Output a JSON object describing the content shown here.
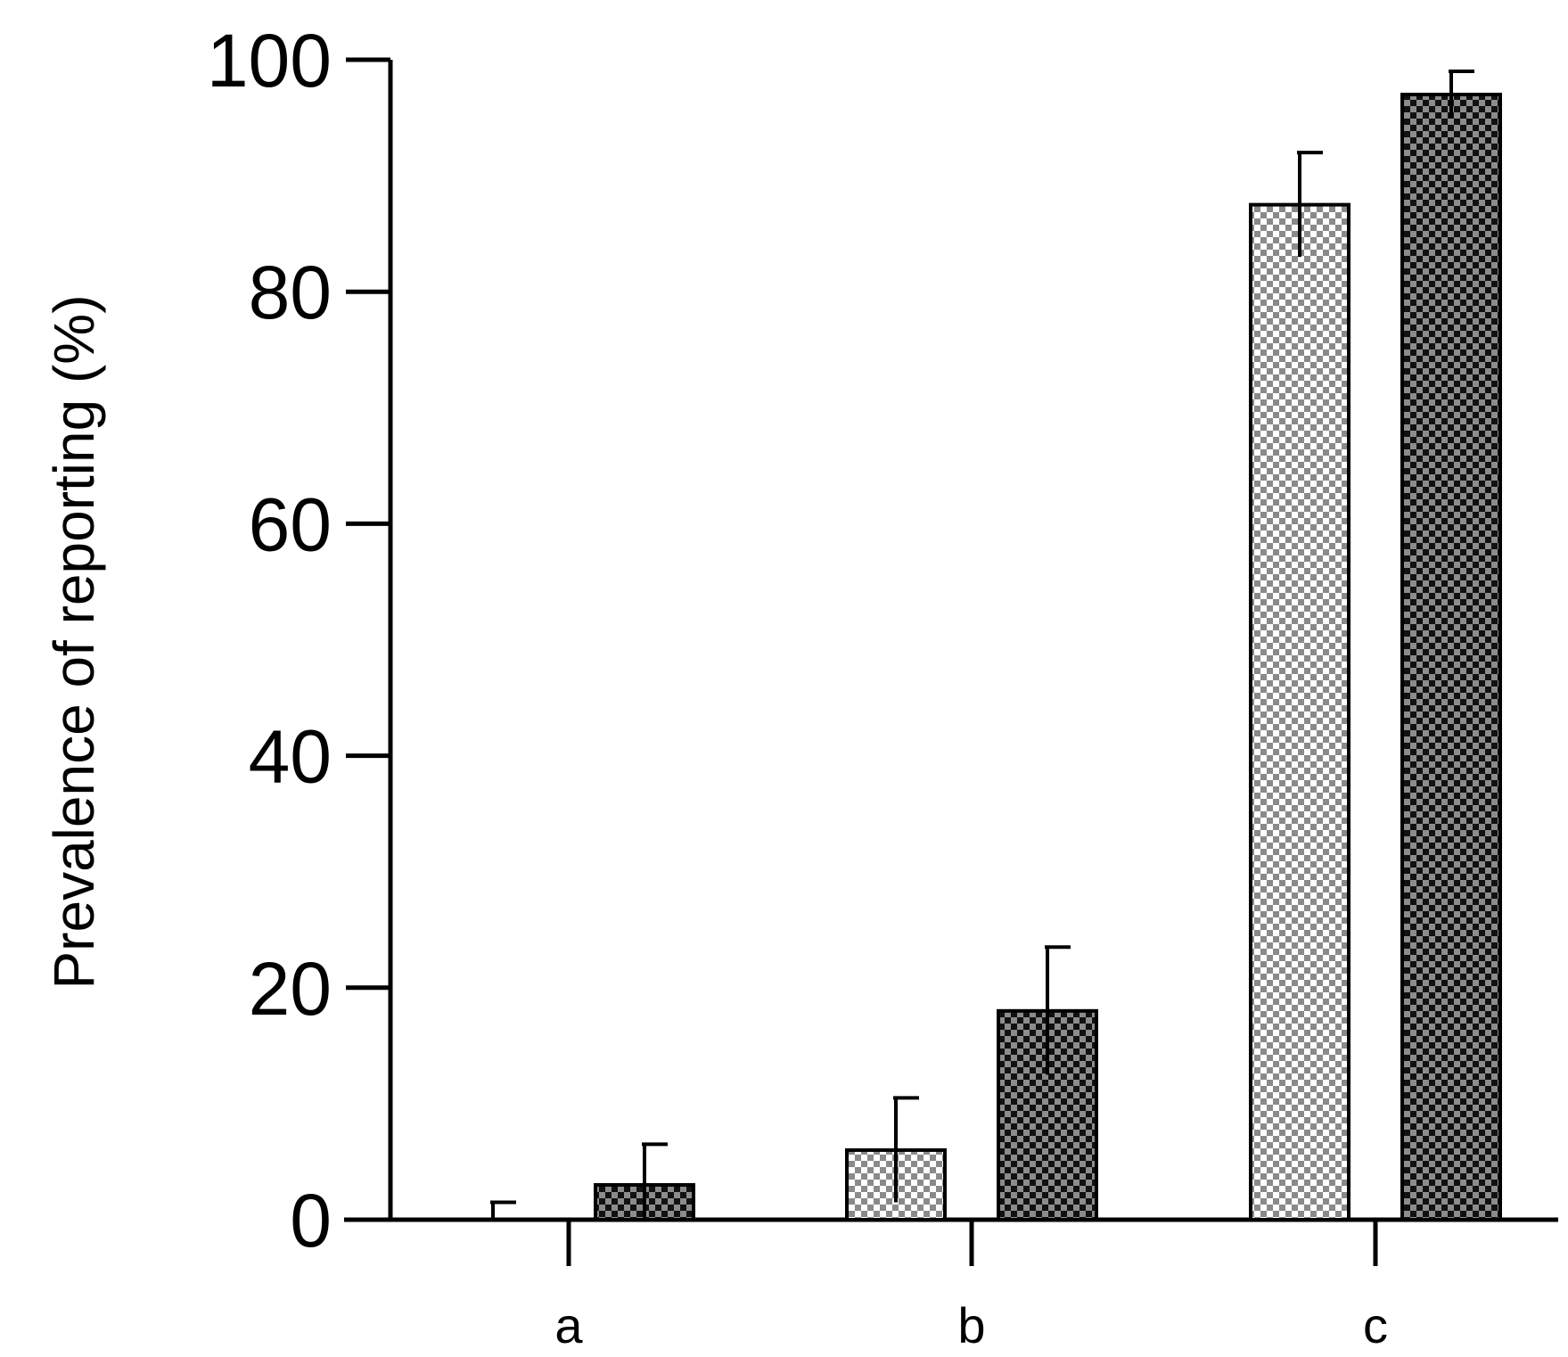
{
  "chart_data": {
    "type": "bar",
    "categories": [
      "a",
      "b",
      "c"
    ],
    "series": [
      {
        "values": [
          0,
          6,
          87.5
        ],
        "errors": [
          1.5,
          4.5,
          4.5
        ]
      },
      {
        "values": [
          3,
          18,
          97
        ],
        "errors": [
          3.5,
          5.5,
          2
        ]
      }
    ],
    "title": "",
    "xlabel": "",
    "ylabel": "Prevalence of reporting (%)",
    "ylim": [
      0,
      100
    ],
    "yticks": [
      "0",
      "20",
      "40",
      "60",
      "80",
      "100"
    ],
    "grid": false,
    "legend": "none",
    "colors": {
      "series_light": "#b8b8b8",
      "series_dark": "#4a4a4a",
      "axis": "#000000"
    }
  }
}
